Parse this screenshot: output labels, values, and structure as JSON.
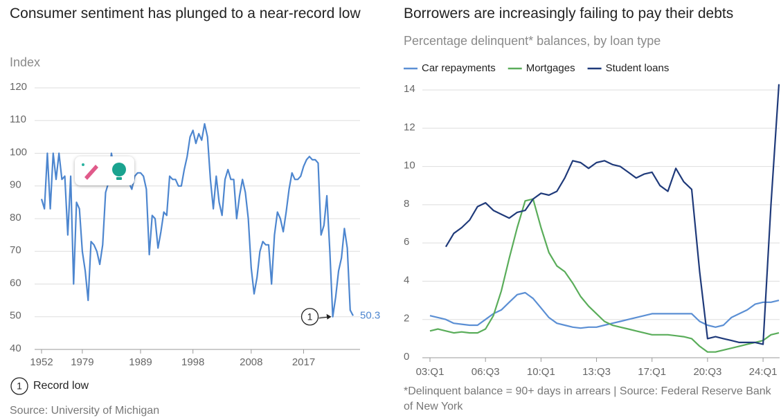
{
  "chart_data": [
    {
      "type": "line",
      "title": "Consumer sentiment has plunged to a near-record low",
      "y_label": "Index",
      "categories": [
        "1952",
        null,
        null,
        null,
        null,
        null,
        null,
        null,
        null,
        null,
        null,
        null,
        null,
        null,
        "1979",
        null,
        null,
        null,
        null,
        null,
        null,
        null,
        null,
        null,
        null,
        null,
        null,
        null,
        null,
        null,
        null,
        null,
        null,
        null,
        "1989",
        null,
        null,
        null,
        null,
        null,
        null,
        null,
        null,
        null,
        null,
        null,
        null,
        null,
        null,
        null,
        null,
        null,
        "1998",
        null,
        null,
        null,
        null,
        null,
        null,
        null,
        null,
        null,
        null,
        null,
        null,
        null,
        null,
        null,
        null,
        null,
        null,
        null,
        "2008",
        null,
        null,
        null,
        null,
        null,
        null,
        null,
        null,
        null,
        null,
        null,
        null,
        null,
        null,
        null,
        null,
        null,
        "2017",
        null,
        null,
        null,
        null,
        null,
        null,
        null,
        null,
        null,
        null,
        null,
        null,
        null,
        null,
        null,
        null,
        null
      ],
      "values": [
        86,
        83,
        100,
        83,
        100,
        92,
        100,
        92,
        93,
        75,
        93,
        60,
        85,
        83,
        70,
        64,
        55,
        73,
        72,
        70,
        66,
        72,
        88,
        91,
        100,
        95,
        93,
        92,
        96,
        93,
        91,
        89,
        93,
        94,
        94,
        93,
        89,
        69,
        81,
        80,
        71,
        76,
        82,
        81,
        93,
        92,
        92,
        90,
        90,
        95,
        99,
        105,
        107,
        103,
        106,
        104,
        109,
        105,
        92,
        83,
        93,
        85,
        81,
        92,
        95,
        92,
        92,
        80,
        87,
        92,
        88,
        80,
        65,
        57,
        62,
        70,
        73,
        72,
        72,
        60,
        75,
        82,
        80,
        76,
        82,
        89,
        94,
        92,
        92,
        93,
        96,
        98,
        99,
        98,
        98,
        97,
        75,
        78,
        87,
        70,
        50,
        56,
        64,
        68,
        77,
        71,
        52,
        50.3
      ],
      "color": "#4d86cf",
      "ylim": [
        40,
        120
      ],
      "yticks": [
        40,
        50,
        60,
        70,
        80,
        90,
        100,
        110,
        120
      ],
      "grid": true,
      "annotation": {
        "marker": "1",
        "text": "Record low"
      },
      "source": "Source: University of Michigan"
    },
    {
      "type": "line",
      "title": "Borrowers are increasingly failing to pay their debts",
      "subtitle": "Percentage delinquent* balances, by loan type",
      "categories": [
        "03:Q1",
        null,
        null,
        null,
        null,
        null,
        null,
        "06:Q3",
        null,
        null,
        null,
        null,
        null,
        null,
        "10:Q1",
        null,
        null,
        null,
        null,
        null,
        null,
        "13:Q3",
        null,
        null,
        null,
        null,
        null,
        null,
        "17:Q1",
        null,
        null,
        null,
        null,
        null,
        null,
        "20:Q3",
        null,
        null,
        null,
        null,
        null,
        null,
        "24:Q1",
        null,
        null
      ],
      "series": [
        {
          "name": "Car repayments",
          "color": "#5b8fd4",
          "values": [
            2.2,
            2.1,
            2.0,
            1.8,
            1.75,
            1.7,
            1.7,
            2.0,
            2.3,
            2.5,
            2.9,
            3.3,
            3.4,
            3.1,
            2.6,
            2.1,
            1.8,
            1.7,
            1.6,
            1.55,
            1.6,
            1.6,
            1.7,
            1.8,
            1.9,
            2.0,
            2.1,
            2.2,
            2.3,
            2.3,
            2.3,
            2.3,
            2.3,
            2.3,
            1.9,
            1.7,
            1.6,
            1.7,
            2.1,
            2.3,
            2.5,
            2.8,
            2.9,
            2.9,
            3.0
          ]
        },
        {
          "name": "Mortgages",
          "color": "#5aad5a",
          "values": [
            1.4,
            1.5,
            1.4,
            1.3,
            1.35,
            1.3,
            1.3,
            1.5,
            2.2,
            3.5,
            5.2,
            6.8,
            8.2,
            8.3,
            6.8,
            5.5,
            4.8,
            4.5,
            3.9,
            3.2,
            2.7,
            2.3,
            1.9,
            1.7,
            1.6,
            1.5,
            1.4,
            1.3,
            1.2,
            1.2,
            1.2,
            1.15,
            1.1,
            1.0,
            0.6,
            0.3,
            0.3,
            0.4,
            0.5,
            0.6,
            0.7,
            0.8,
            0.9,
            1.2,
            1.3
          ]
        },
        {
          "name": "Student loans",
          "color": "#1f3a7a",
          "values": [
            null,
            null,
            5.8,
            6.5,
            6.8,
            7.2,
            7.9,
            8.1,
            7.7,
            7.5,
            7.3,
            7.6,
            7.7,
            8.3,
            8.6,
            8.5,
            8.7,
            9.4,
            10.3,
            10.2,
            9.9,
            10.2,
            10.3,
            10.1,
            10.0,
            9.7,
            9.4,
            9.6,
            9.7,
            9.0,
            8.7,
            9.9,
            9.2,
            8.8,
            4.5,
            1.0,
            1.1,
            1.0,
            0.9,
            0.8,
            0.8,
            0.8,
            0.7,
            8.0,
            14.3
          ]
        }
      ],
      "ylim": [
        0,
        14
      ],
      "yticks": [
        0,
        2,
        4,
        6,
        8,
        10,
        12,
        14
      ],
      "grid": true,
      "legend": "top",
      "source": "*Delinquent balance = 90+ days in arrears | Source: Federal Reserve Bank of New York"
    }
  ]
}
